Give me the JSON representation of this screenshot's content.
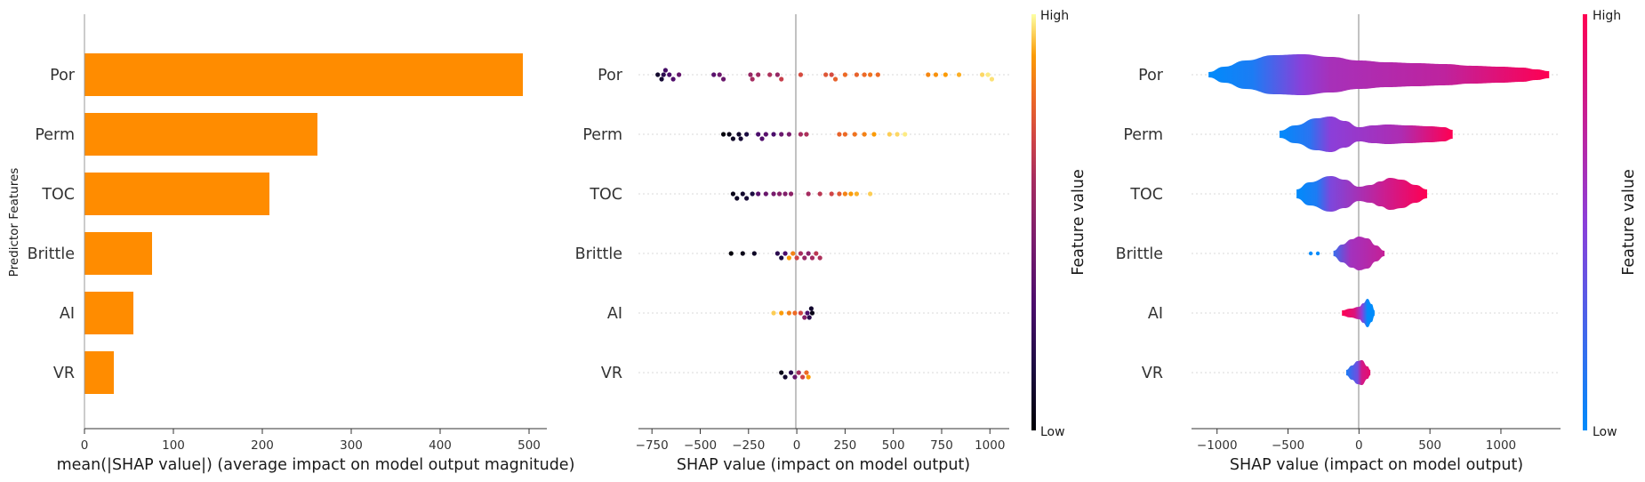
{
  "chart_data": [
    {
      "type": "bar",
      "orientation": "horizontal",
      "categories": [
        "Por",
        "Perm",
        "TOC",
        "Brittle",
        "AI",
        "VR"
      ],
      "values": [
        493,
        262,
        208,
        76,
        55,
        33
      ],
      "xlabel": "mean(|SHAP value|) (average impact on model output magnitude)",
      "ylabel": "Predictor Features",
      "xlim": [
        0,
        520
      ],
      "xticks": [
        0,
        100,
        200,
        300,
        400,
        500
      ],
      "bar_color": "#ff8c00"
    },
    {
      "type": "scatter",
      "style": "beeswarm",
      "categories": [
        "Por",
        "Perm",
        "TOC",
        "Brittle",
        "AI",
        "VR"
      ],
      "xlabel": "SHAP value (impact on model output)",
      "xlim": [
        -820,
        1100
      ],
      "xticks": [
        -750,
        -500,
        -250,
        0,
        250,
        500,
        750,
        1000
      ],
      "colorbar_label": "Feature value",
      "colorbar_high": "High",
      "colorbar_low": "Low",
      "colormap": "inferno",
      "series": [
        {
          "feature": "Por",
          "points": [
            [
              -720,
              0.1
            ],
            [
              -700,
              0.12
            ],
            [
              -690,
              0.2
            ],
            [
              -680,
              0.28
            ],
            [
              -660,
              0.3
            ],
            [
              -640,
              0.32
            ],
            [
              -610,
              0.38
            ],
            [
              -430,
              0.35
            ],
            [
              -400,
              0.42
            ],
            [
              -380,
              0.4
            ],
            [
              -240,
              0.55
            ],
            [
              -230,
              0.6
            ],
            [
              -200,
              0.58
            ],
            [
              -140,
              0.62
            ],
            [
              -100,
              0.55
            ],
            [
              -80,
              0.68
            ],
            [
              20,
              0.72
            ],
            [
              150,
              0.75
            ],
            [
              180,
              0.72
            ],
            [
              200,
              0.78
            ],
            [
              250,
              0.8
            ],
            [
              310,
              0.78
            ],
            [
              350,
              0.8
            ],
            [
              380,
              0.82
            ],
            [
              420,
              0.8
            ],
            [
              680,
              0.86
            ],
            [
              720,
              0.88
            ],
            [
              770,
              0.9
            ],
            [
              840,
              0.92
            ],
            [
              960,
              0.96
            ],
            [
              990,
              0.98
            ],
            [
              1010,
              0.97
            ]
          ]
        },
        {
          "feature": "Perm",
          "points": [
            [
              -380,
              0.02
            ],
            [
              -350,
              0.05
            ],
            [
              -330,
              0.08
            ],
            [
              -300,
              0.1
            ],
            [
              -290,
              0.12
            ],
            [
              -260,
              0.15
            ],
            [
              -200,
              0.3
            ],
            [
              -180,
              0.32
            ],
            [
              -160,
              0.35
            ],
            [
              -120,
              0.3
            ],
            [
              -80,
              0.4
            ],
            [
              -40,
              0.45
            ],
            [
              20,
              0.6
            ],
            [
              50,
              0.62
            ],
            [
              220,
              0.78
            ],
            [
              250,
              0.8
            ],
            [
              300,
              0.82
            ],
            [
              350,
              0.85
            ],
            [
              400,
              0.9
            ],
            [
              480,
              0.95
            ],
            [
              520,
              0.96
            ],
            [
              560,
              0.98
            ]
          ]
        },
        {
          "feature": "TOC",
          "points": [
            [
              -330,
              0.05
            ],
            [
              -310,
              0.08
            ],
            [
              -280,
              0.1
            ],
            [
              -260,
              0.12
            ],
            [
              -230,
              0.15
            ],
            [
              -200,
              0.35
            ],
            [
              -160,
              0.4
            ],
            [
              -120,
              0.45
            ],
            [
              -90,
              0.5
            ],
            [
              -60,
              0.48
            ],
            [
              -30,
              0.52
            ],
            [
              60,
              0.6
            ],
            [
              120,
              0.65
            ],
            [
              180,
              0.7
            ],
            [
              220,
              0.75
            ],
            [
              250,
              0.85
            ],
            [
              280,
              0.9
            ],
            [
              310,
              0.92
            ],
            [
              380,
              0.95
            ]
          ]
        },
        {
          "feature": "Brittle",
          "points": [
            [
              -340,
              0.02
            ],
            [
              -280,
              0.05
            ],
            [
              -220,
              0.08
            ],
            [
              -100,
              0.2
            ],
            [
              -80,
              0.15
            ],
            [
              -60,
              0.3
            ],
            [
              -40,
              0.9
            ],
            [
              -20,
              0.85
            ],
            [
              0,
              0.7
            ],
            [
              20,
              0.6
            ],
            [
              40,
              0.55
            ],
            [
              60,
              0.5
            ],
            [
              80,
              0.6
            ],
            [
              100,
              0.65
            ],
            [
              120,
              0.62
            ]
          ]
        },
        {
          "feature": "AI",
          "points": [
            [
              -120,
              0.95
            ],
            [
              -80,
              0.9
            ],
            [
              -40,
              0.85
            ],
            [
              -10,
              0.8
            ],
            [
              20,
              0.7
            ],
            [
              40,
              0.5
            ],
            [
              55,
              0.3
            ],
            [
              65,
              0.2
            ],
            [
              75,
              0.1
            ],
            [
              80,
              0.05
            ]
          ]
        },
        {
          "feature": "VR",
          "points": [
            [
              -80,
              0.05
            ],
            [
              -60,
              0.1
            ],
            [
              -30,
              0.2
            ],
            [
              -10,
              0.4
            ],
            [
              10,
              0.6
            ],
            [
              30,
              0.7
            ],
            [
              50,
              0.8
            ],
            [
              60,
              0.9
            ]
          ]
        }
      ]
    },
    {
      "type": "violin",
      "categories": [
        "Por",
        "Perm",
        "TOC",
        "Brittle",
        "AI",
        "VR"
      ],
      "xlabel": "SHAP value (impact on model output)",
      "xlim": [
        -1180,
        1420
      ],
      "xticks": [
        -1000,
        -500,
        0,
        500,
        1000
      ],
      "colorbar_label": "Feature value",
      "colorbar_high": "High",
      "colorbar_low": "Low",
      "color_low": "#008bfb",
      "color_high": "#ff0052",
      "series": [
        {
          "feature": "Por",
          "profile": [
            [
              -1060,
              3
            ],
            [
              -950,
              9
            ],
            [
              -800,
              16
            ],
            [
              -600,
              22
            ],
            [
              -400,
              23
            ],
            [
              -200,
              20
            ],
            [
              0,
              16
            ],
            [
              200,
              14
            ],
            [
              400,
              13
            ],
            [
              600,
              12
            ],
            [
              800,
              10
            ],
            [
              1000,
              9
            ],
            [
              1150,
              8
            ],
            [
              1250,
              6
            ],
            [
              1340,
              4
            ]
          ],
          "color_stops": [
            [
              -1060,
              0
            ],
            [
              -750,
              0.1
            ],
            [
              -400,
              0.5
            ],
            [
              -200,
              0.62
            ],
            [
              600,
              0.72
            ],
            [
              1340,
              1
            ]
          ]
        },
        {
          "feature": "Perm",
          "profile": [
            [
              -560,
              4
            ],
            [
              -450,
              10
            ],
            [
              -300,
              18
            ],
            [
              -200,
              20
            ],
            [
              -100,
              15
            ],
            [
              0,
              8
            ],
            [
              100,
              10
            ],
            [
              200,
              11
            ],
            [
              350,
              10
            ],
            [
              500,
              9
            ],
            [
              600,
              8
            ],
            [
              660,
              5
            ]
          ],
          "color_stops": [
            [
              -560,
              0
            ],
            [
              -350,
              0.15
            ],
            [
              -200,
              0.5
            ],
            [
              300,
              0.65
            ],
            [
              500,
              0.85
            ],
            [
              660,
              1
            ]
          ]
        },
        {
          "feature": "TOC",
          "profile": [
            [
              -440,
              5
            ],
            [
              -350,
              13
            ],
            [
              -200,
              20
            ],
            [
              -100,
              16
            ],
            [
              0,
              8
            ],
            [
              80,
              10
            ],
            [
              150,
              14
            ],
            [
              220,
              18
            ],
            [
              300,
              16
            ],
            [
              400,
              10
            ],
            [
              480,
              5
            ]
          ],
          "color_stops": [
            [
              -440,
              0
            ],
            [
              -300,
              0.1
            ],
            [
              -200,
              0.45
            ],
            [
              150,
              0.75
            ],
            [
              480,
              1
            ]
          ]
        },
        {
          "feature": "Brittle",
          "profile": [
            [
              -180,
              3
            ],
            [
              -120,
              10
            ],
            [
              -50,
              16
            ],
            [
              0,
              19
            ],
            [
              60,
              17
            ],
            [
              120,
              9
            ],
            [
              180,
              3
            ]
          ],
          "color_stops": [
            [
              -180,
              0.2
            ],
            [
              -60,
              0.6
            ],
            [
              180,
              0.75
            ]
          ]
        },
        {
          "feature": "AI",
          "profile": [
            [
              -120,
              3
            ],
            [
              -60,
              5
            ],
            [
              0,
              7
            ],
            [
              30,
              11
            ],
            [
              60,
              16
            ],
            [
              90,
              10
            ],
            [
              110,
              3
            ]
          ],
          "color_stops": [
            [
              -120,
              1
            ],
            [
              -30,
              0.85
            ],
            [
              20,
              0.5
            ],
            [
              60,
              0
            ],
            [
              110,
              0
            ]
          ]
        },
        {
          "feature": "VR",
          "profile": [
            [
              -90,
              3
            ],
            [
              -50,
              8
            ],
            [
              -10,
              13
            ],
            [
              20,
              14
            ],
            [
              60,
              7
            ],
            [
              80,
              3
            ]
          ],
          "color_stops": [
            [
              -90,
              0.1
            ],
            [
              -10,
              0.4
            ],
            [
              20,
              0.8
            ],
            [
              80,
              0.9
            ]
          ]
        }
      ],
      "outlier_points": [
        {
          "feature": "Brittle",
          "x": [
            -340,
            -290
          ]
        }
      ]
    }
  ]
}
